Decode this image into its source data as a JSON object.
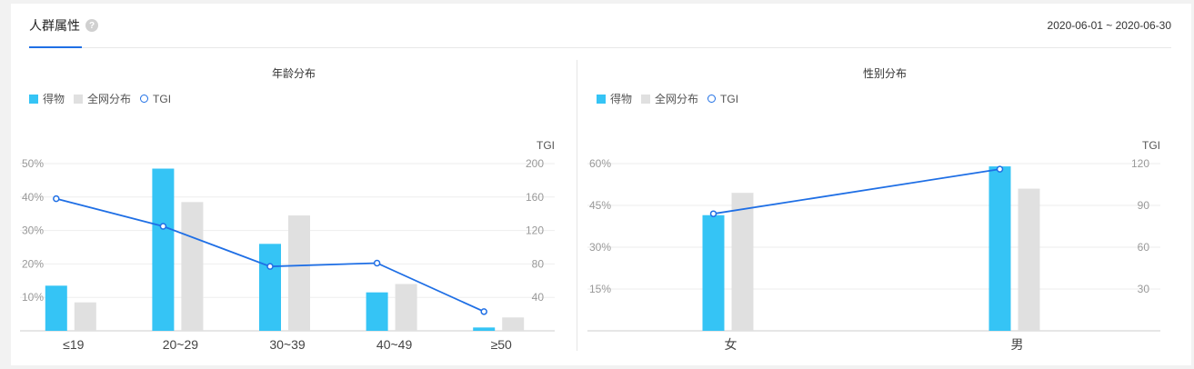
{
  "header": {
    "tab_label": "人群属性",
    "help_icon": "?",
    "date_range": "2020-06-01 ~ 2020-06-30"
  },
  "colors": {
    "series_brand": "#35c4f5",
    "series_all": "#e0e0e0",
    "tgi_line": "#1f6fe5",
    "accent": "#1f6fe5"
  },
  "chart_data": [
    {
      "type": "bar",
      "title": "年龄分布",
      "categories": [
        "≤19",
        "20~29",
        "30~39",
        "40~49",
        "≥50"
      ],
      "series": [
        {
          "name": "得物",
          "type": "bar",
          "values": [
            13.5,
            48.5,
            26.0,
            11.5,
            1.0
          ]
        },
        {
          "name": "全网分布",
          "type": "bar",
          "values": [
            8.5,
            38.5,
            34.5,
            14.0,
            4.0
          ]
        },
        {
          "name": "TGI",
          "type": "line",
          "axis": "right",
          "values": [
            158,
            125,
            77,
            81,
            23
          ]
        }
      ],
      "left_axis": {
        "ticks": [
          "10%",
          "20%",
          "30%",
          "40%",
          "50%"
        ],
        "ylim": [
          0,
          50
        ]
      },
      "right_axis": {
        "label": "TGI",
        "ticks": [
          "40",
          "80",
          "120",
          "160",
          "200"
        ],
        "ylim": [
          0,
          200
        ]
      },
      "legend": [
        "得物",
        "全网分布",
        "TGI"
      ],
      "legend_position": "top-left",
      "grid": true
    },
    {
      "type": "bar",
      "title": "性别分布",
      "categories": [
        "女",
        "男"
      ],
      "series": [
        {
          "name": "得物",
          "type": "bar",
          "values": [
            41.5,
            59.0
          ]
        },
        {
          "name": "全网分布",
          "type": "bar",
          "values": [
            49.5,
            51.0
          ]
        },
        {
          "name": "TGI",
          "type": "line",
          "axis": "right",
          "values": [
            84,
            116
          ]
        }
      ],
      "left_axis": {
        "ticks": [
          "15%",
          "30%",
          "45%",
          "60%"
        ],
        "ylim": [
          0,
          60
        ]
      },
      "right_axis": {
        "label": "TGI",
        "ticks": [
          "30",
          "60",
          "90",
          "120"
        ],
        "ylim": [
          0,
          120
        ]
      },
      "legend": [
        "得物",
        "全网分布",
        "TGI"
      ],
      "legend_position": "top-left",
      "grid": true
    }
  ]
}
